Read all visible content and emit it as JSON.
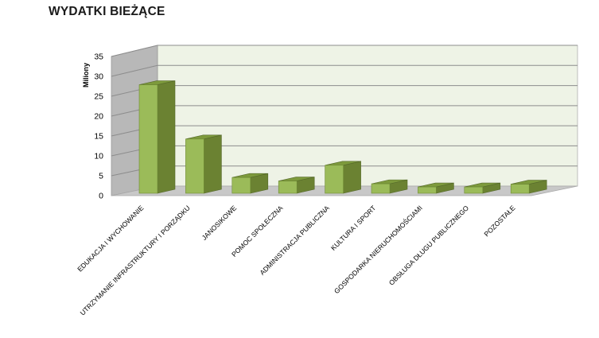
{
  "chart_data": {
    "type": "bar",
    "title": "WYDATKI BIEŻĄCE",
    "ylabel": "Miliony",
    "xlabel": "",
    "ylim": [
      0,
      35
    ],
    "yticks": [
      0,
      5,
      10,
      15,
      20,
      25,
      30,
      35
    ],
    "grid": true,
    "categories": [
      "EDUKACJA I WYCHOWANIE",
      "UTRZYMANIE INFRASTRUKTURY I PORZĄDKU",
      "JANOSIKOWE",
      "POMOC SPOŁECZNA",
      "ADMINISTRACJA PUBLICZNA",
      "KULTURA I SPORT",
      "GOSPODARKA NIERUCHOMOŚCIAMI",
      "OBSŁUGA DŁUGU PUBLICZNEGO",
      "POZOSTAŁE"
    ],
    "values": [
      31,
      15.5,
      4.5,
      3.5,
      8,
      2.7,
      1.8,
      1.8,
      2.6
    ],
    "colors": {
      "bar_front": "#9bbb59",
      "bar_side": "#6b8232",
      "bar_top": "#7d9a3c",
      "wall": "#eef3e6",
      "side_wall": "#b8b8b8",
      "floor": "#c8c8c8",
      "grid": "#8c8c8c"
    }
  }
}
